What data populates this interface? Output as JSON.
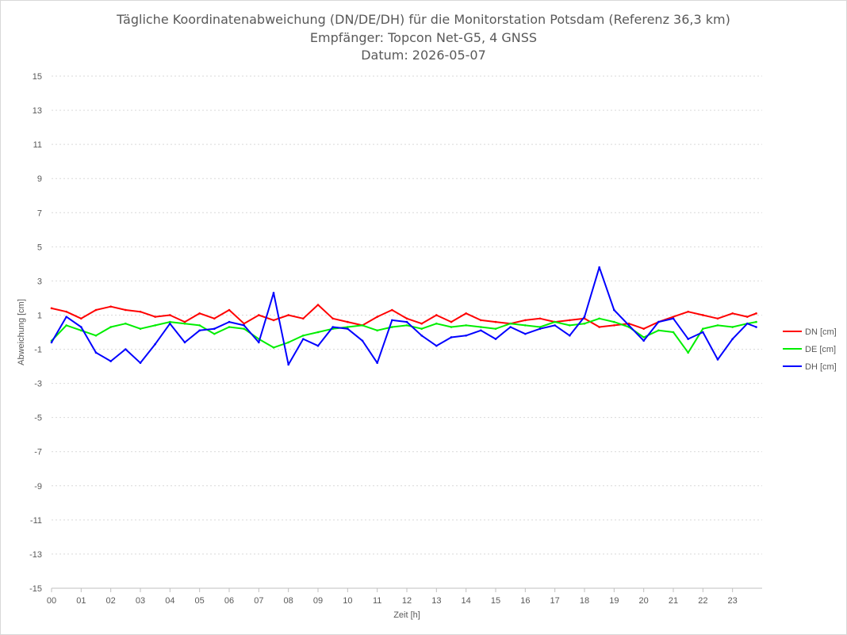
{
  "chart_data": {
    "type": "line",
    "title_lines": [
      "Tägliche Koordinatenabweichung (DN/DE/DH) für die Monitorstation Potsdam (Referenz 36,3 km)",
      "Empfänger: Topcon Net-G5, 4 GNSS",
      "Datum: 2026-05-07"
    ],
    "xlabel": "Zeit [h]",
    "ylabel": "Abweichung [cm]",
    "xlim": [
      0,
      24
    ],
    "ylim": [
      -15,
      15
    ],
    "x_ticks": [
      "00",
      "01",
      "02",
      "03",
      "04",
      "05",
      "06",
      "07",
      "08",
      "09",
      "10",
      "11",
      "12",
      "13",
      "14",
      "15",
      "16",
      "17",
      "18",
      "19",
      "20",
      "21",
      "22",
      "23"
    ],
    "y_ticks": [
      15,
      13,
      11,
      9,
      7,
      5,
      3,
      1,
      -1,
      -3,
      -5,
      -7,
      -9,
      -11,
      -13,
      -15
    ],
    "grid": "horizontal dotted",
    "legend_position": "right",
    "x": [
      0,
      0.5,
      1,
      1.5,
      2,
      2.5,
      3,
      3.5,
      4,
      4.5,
      5,
      5.5,
      6,
      6.5,
      7,
      7.5,
      8,
      8.5,
      9,
      9.5,
      10,
      10.5,
      11,
      11.5,
      12,
      12.5,
      13,
      13.5,
      14,
      14.5,
      15,
      15.5,
      16,
      16.5,
      17,
      17.5,
      18,
      18.5,
      19,
      19.5,
      20,
      20.5,
      21,
      21.5,
      22,
      22.5,
      23,
      23.5,
      23.8
    ],
    "series": [
      {
        "name": "DN [cm]",
        "color": "#ff0000",
        "values": [
          1.4,
          1.2,
          0.8,
          1.3,
          1.5,
          1.3,
          1.2,
          0.9,
          1.0,
          0.6,
          1.1,
          0.8,
          1.3,
          0.5,
          1.0,
          0.7,
          1.0,
          0.8,
          1.6,
          0.8,
          0.6,
          0.4,
          0.9,
          1.3,
          0.8,
          0.5,
          1.0,
          0.6,
          1.1,
          0.7,
          0.6,
          0.5,
          0.7,
          0.8,
          0.6,
          0.7,
          0.8,
          0.3,
          0.4,
          0.5,
          0.2,
          0.6,
          0.9,
          1.2,
          1.0,
          0.8,
          1.1,
          0.9,
          1.1
        ]
      },
      {
        "name": "DE [cm]",
        "color": "#00ee00",
        "values": [
          -0.5,
          0.4,
          0.1,
          -0.2,
          0.3,
          0.5,
          0.2,
          0.4,
          0.6,
          0.5,
          0.4,
          -0.1,
          0.3,
          0.2,
          -0.4,
          -0.9,
          -0.6,
          -0.2,
          0.0,
          0.2,
          0.3,
          0.4,
          0.1,
          0.3,
          0.4,
          0.2,
          0.5,
          0.3,
          0.4,
          0.3,
          0.2,
          0.5,
          0.4,
          0.3,
          0.6,
          0.4,
          0.5,
          0.8,
          0.6,
          0.3,
          -0.3,
          0.1,
          0.0,
          -1.2,
          0.2,
          0.4,
          0.3,
          0.5,
          0.6
        ]
      },
      {
        "name": "DH [cm]",
        "color": "#0000ff",
        "values": [
          -0.6,
          0.9,
          0.3,
          -1.2,
          -1.7,
          -1.0,
          -1.8,
          -0.7,
          0.5,
          -0.6,
          0.1,
          0.2,
          0.6,
          0.4,
          -0.6,
          2.3,
          -1.9,
          -0.4,
          -0.8,
          0.3,
          0.2,
          -0.5,
          -1.8,
          0.7,
          0.6,
          -0.2,
          -0.8,
          -0.3,
          -0.2,
          0.1,
          -0.4,
          0.3,
          -0.1,
          0.2,
          0.4,
          -0.2,
          0.9,
          3.8,
          1.3,
          0.4,
          -0.5,
          0.6,
          0.8,
          -0.4,
          0.0,
          -1.6,
          -0.4,
          0.5,
          0.3
        ]
      }
    ]
  }
}
